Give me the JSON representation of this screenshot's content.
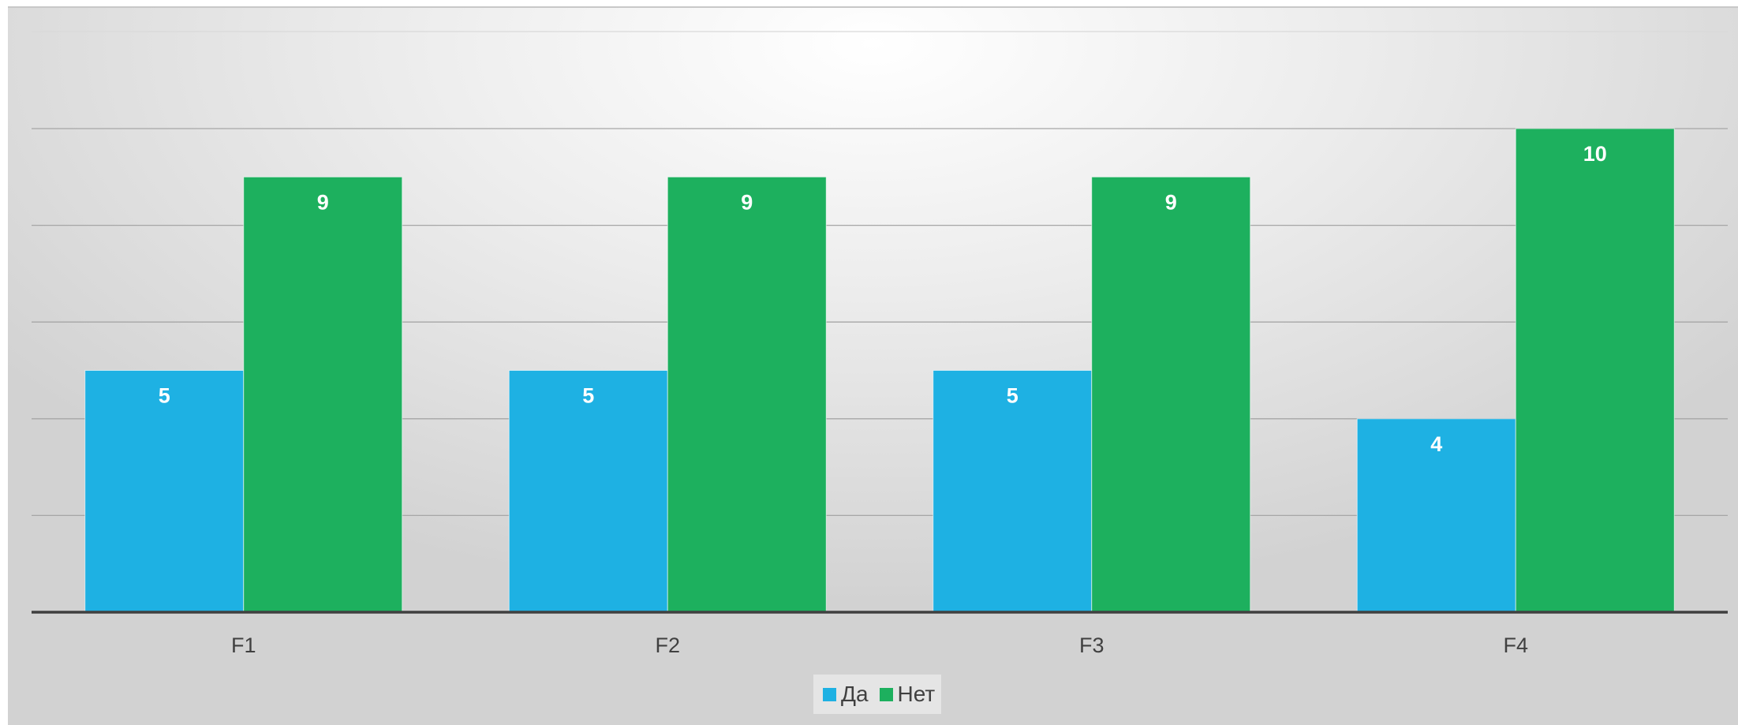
{
  "chart_data": {
    "type": "bar",
    "categories": [
      "F1",
      "F2",
      "F3",
      "F4"
    ],
    "series": [
      {
        "name": "Да",
        "values": [
          5,
          5,
          5,
          4
        ],
        "color": "#1EB1E3"
      },
      {
        "name": "Нет",
        "values": [
          9,
          9,
          9,
          10
        ],
        "color": "#1DB05E"
      }
    ],
    "ylim": [
      0,
      10
    ],
    "gridlines": [
      2,
      4,
      6,
      8,
      10
    ],
    "grid": true,
    "legend_position": "bottom",
    "data_labels": true,
    "title": "",
    "xlabel": "",
    "ylabel": ""
  }
}
